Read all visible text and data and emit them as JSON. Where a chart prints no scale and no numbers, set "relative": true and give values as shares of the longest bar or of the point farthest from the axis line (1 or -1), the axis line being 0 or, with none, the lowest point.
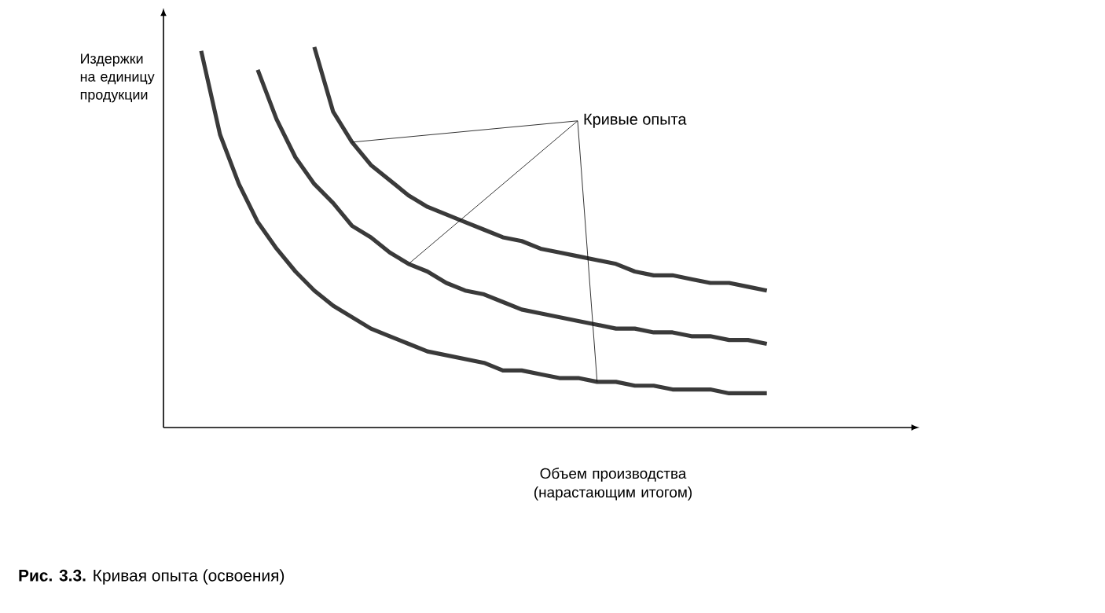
{
  "chart_data": {
    "type": "line",
    "relative": true,
    "ylabel": "Издержки на единицу продукции",
    "xlabel": "Объем производства (нарастающим итогом)",
    "annotations": [
      "Кривые опыта",
      "**Рис. 3.3.** Кривая опыта (освоения)"
    ],
    "marker": "none",
    "line_style": "solid",
    "categories": [
      null,
      null,
      null,
      null,
      null,
      null,
      null,
      null,
      null,
      null,
      null,
      null,
      null,
      null,
      null,
      null,
      null,
      null,
      null,
      null,
      null,
      null,
      null,
      null,
      null,
      null,
      null,
      null,
      null,
      null,
      null
    ],
    "series": [
      {
        "color": "#3a3a3a",
        "values": [
          0.99,
          0.77,
          0.64,
          0.54,
          0.47,
          0.41,
          0.36,
          0.32,
          0.29,
          0.26,
          0.24,
          0.22,
          0.2,
          0.19,
          0.18,
          0.17,
          0.15,
          0.15,
          0.14,
          0.13,
          0.13,
          0.12,
          0.12,
          0.11,
          0.11,
          0.1,
          0.1,
          0.1,
          0.09,
          0.09,
          0.09
        ]
      },
      {
        "color": "#3a3a3a",
        "values": [
          null,
          null,
          null,
          0.94,
          0.81,
          0.71,
          0.64,
          0.59,
          0.53,
          0.5,
          0.46,
          0.43,
          0.41,
          0.38,
          0.36,
          0.35,
          0.33,
          0.31,
          0.3,
          0.29,
          0.28,
          0.27,
          0.26,
          0.26,
          0.25,
          0.25,
          0.24,
          0.24,
          0.23,
          0.23,
          0.22
        ]
      },
      {
        "color": "#3a3a3a",
        "values": [
          null,
          null,
          null,
          null,
          null,
          null,
          1.0,
          0.83,
          0.75,
          0.69,
          0.65,
          0.61,
          0.58,
          0.56,
          0.54,
          0.52,
          0.5,
          0.49,
          0.47,
          0.46,
          0.45,
          0.44,
          0.43,
          0.41,
          0.4,
          0.4,
          0.39,
          0.38,
          0.38,
          0.37,
          0.36
        ]
      }
    ]
  }
}
